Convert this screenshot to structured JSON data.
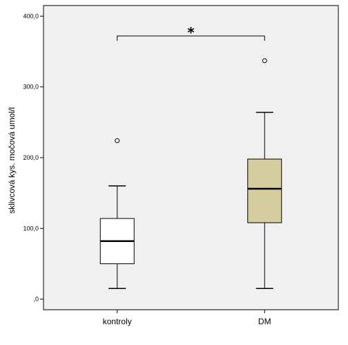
{
  "chart_data": {
    "type": "box",
    "ylabel": "sklivcová kys. močová umol/l",
    "ylim": [
      -15,
      415
    ],
    "yticks": [
      0,
      100,
      200,
      300,
      400
    ],
    "ytick_labels": [
      ",0",
      "100,0",
      "200,0",
      "300,0",
      "400,0"
    ],
    "categories": [
      "kontroly",
      "DM"
    ],
    "boxes": [
      {
        "category": "kontroly",
        "whisker_low": 15,
        "q1": 50,
        "median": 82,
        "q3": 114,
        "whisker_high": 160,
        "outliers": [
          224
        ],
        "fill": "#ffffff"
      },
      {
        "category": "DM",
        "whisker_low": 15,
        "q1": 108,
        "median": 156,
        "q3": 198,
        "whisker_high": 264,
        "outliers": [
          337
        ],
        "fill": "#d5cd9d"
      }
    ],
    "significance": {
      "label": "*",
      "y": 372,
      "between": [
        "kontroly",
        "DM"
      ]
    },
    "plot_background": "#f0f0f0",
    "grid": false
  }
}
